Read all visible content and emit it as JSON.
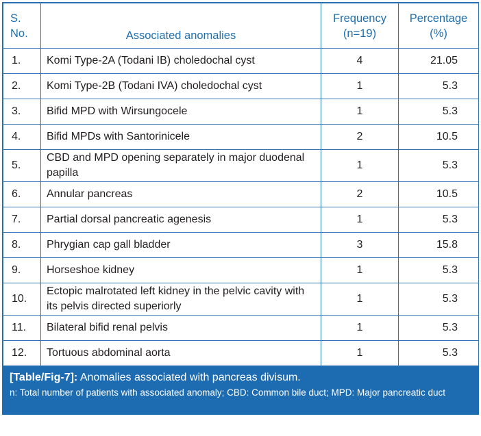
{
  "headers": {
    "sno": "S. No.",
    "anomaly": "Associated anomalies",
    "frequency": "Frequency (n=19)",
    "percentage": "Percentage (%)"
  },
  "rows": [
    {
      "sno": "1.",
      "anomaly": "Komi Type-2A (Todani IB) choledochal cyst",
      "frequency": "4",
      "percentage": "21.05"
    },
    {
      "sno": "2.",
      "anomaly": "Komi Type-2B (Todani IVA) choledochal cyst",
      "frequency": "1",
      "percentage": "5.3"
    },
    {
      "sno": "3.",
      "anomaly": "Bifid MPD with Wirsungocele",
      "frequency": "1",
      "percentage": "5.3"
    },
    {
      "sno": "4.",
      "anomaly": "Bifid MPDs with Santorinicele",
      "frequency": "2",
      "percentage": "10.5"
    },
    {
      "sno": "5.",
      "anomaly": "CBD and MPD opening separately in major duodenal papilla",
      "frequency": "1",
      "percentage": "5.3"
    },
    {
      "sno": "6.",
      "anomaly": "Annular pancreas",
      "frequency": "2",
      "percentage": "10.5"
    },
    {
      "sno": "7.",
      "anomaly": "Partial dorsal pancreatic agenesis",
      "frequency": "1",
      "percentage": "5.3"
    },
    {
      "sno": "8.",
      "anomaly": "Phrygian cap gall bladder",
      "frequency": "3",
      "percentage": "15.8"
    },
    {
      "sno": "9.",
      "anomaly": "Horseshoe kidney",
      "frequency": "1",
      "percentage": "5.3"
    },
    {
      "sno": "10.",
      "anomaly": "Ectopic malrotated left kidney in the pelvic cavity with its pelvis directed superiorly",
      "frequency": "1",
      "percentage": "5.3"
    },
    {
      "sno": "11.",
      "anomaly": "Bilateral bifid renal pelvis",
      "frequency": "1",
      "percentage": "5.3"
    },
    {
      "sno": "12.",
      "anomaly": "Tortuous abdominal aorta",
      "frequency": "1",
      "percentage": "5.3"
    }
  ],
  "caption": {
    "label": "[Table/Fig-7]:",
    "title": "Anomalies associated with pancreas divisum.",
    "note": "n: Total number of patients with associated anomaly; CBD: Common bile duct; MPD: Major pancreatic duct"
  },
  "colors": {
    "header_text": "#1f6fae",
    "border": "#2f75b5",
    "caption_bg": "#1d6bb1"
  }
}
